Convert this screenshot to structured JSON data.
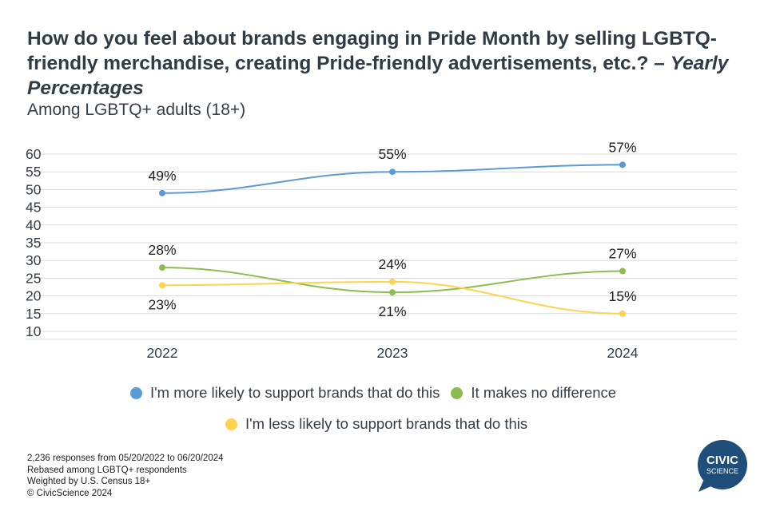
{
  "title": {
    "main": "How do you feel about brands engaging in Pride Month by selling LGBTQ-friendly merchandise, creating Pride-friendly advertisements, etc.? – ",
    "italic": "Yearly Percentages"
  },
  "subtitle": "Among LGBTQ+ adults (18+)",
  "chart_data": {
    "type": "line",
    "title": "How do you feel about brands engaging in Pride Month by selling LGBTQ-friendly merchandise, creating Pride-friendly advertisements, etc.? – Yearly Percentages",
    "subtitle": "Among LGBTQ+ adults (18+)",
    "xlabel": "",
    "ylabel": "",
    "categories": [
      "2022",
      "2023",
      "2024"
    ],
    "ylim": [
      10,
      60
    ],
    "yticks": [
      10,
      15,
      20,
      25,
      30,
      35,
      40,
      45,
      50,
      55,
      60
    ],
    "grid": true,
    "legend_position": "bottom",
    "series": [
      {
        "name": "I'm more likely to support brands that do this",
        "values": [
          49,
          55,
          57
        ],
        "labels": [
          "49%",
          "55%",
          "57%"
        ],
        "color": "#5b9bd5",
        "label_pos": [
          "above",
          "above",
          "above"
        ]
      },
      {
        "name": "It makes no difference",
        "values": [
          28,
          21,
          27
        ],
        "labels": [
          "28%",
          "21%",
          "27%"
        ],
        "color": "#8cbd4f",
        "label_pos": [
          "above",
          "below",
          "above"
        ]
      },
      {
        "name": "I'm less likely to support brands that do this",
        "values": [
          23,
          24,
          15
        ],
        "labels": [
          "23%",
          "24%",
          "15%"
        ],
        "color": "#ffd34e",
        "label_pos": [
          "below",
          "above",
          "above"
        ]
      }
    ]
  },
  "footnotes": [
    "2,236 responses from 05/20/2022 to 06/20/2024",
    "Rebased among LGBTQ+ respondents",
    "Weighted by U.S. Census 18+",
    "© CivicScience 2024"
  ],
  "logo": {
    "line1": "CIVIC",
    "line2": "SCIENCE",
    "color": "#1e4e79"
  }
}
